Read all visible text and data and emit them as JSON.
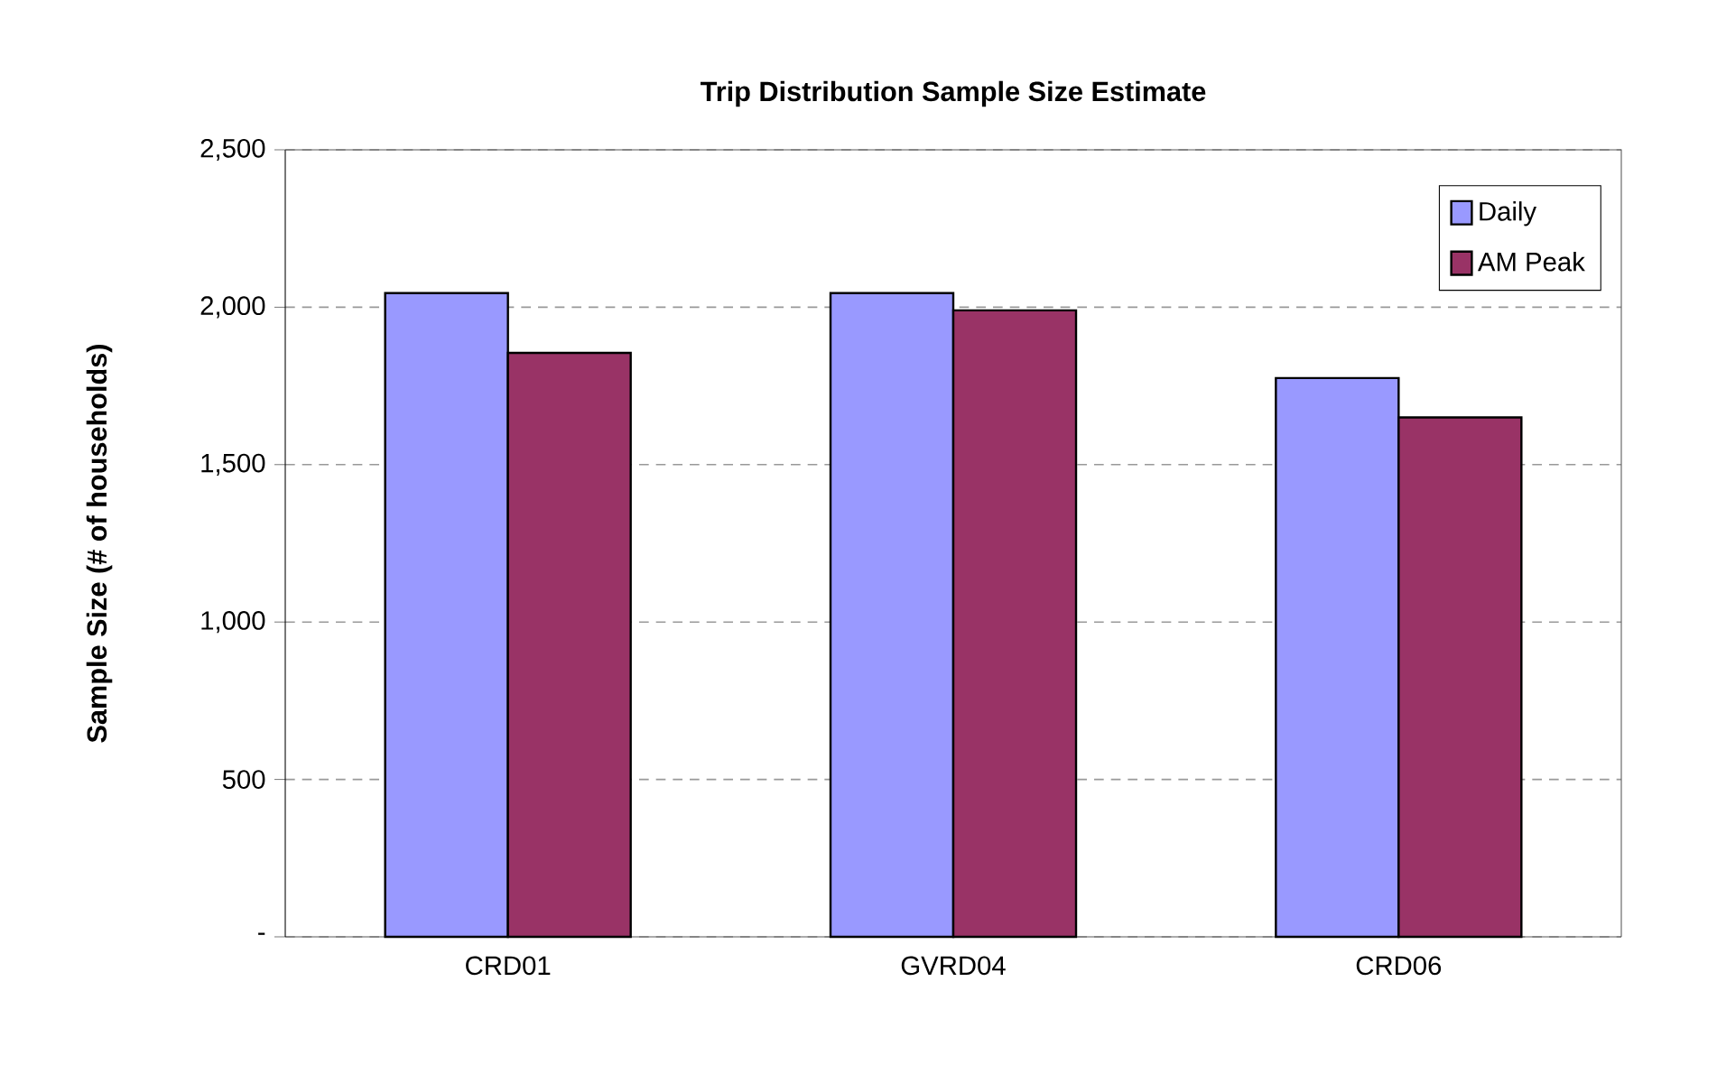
{
  "chart_data": {
    "type": "bar",
    "title": "Trip Distribution Sample Size Estimate",
    "ylabel": "Sample Size (# of households)",
    "categories": [
      "CRD01",
      "GVRD04",
      "CRD06"
    ],
    "series": [
      {
        "name": "Daily",
        "color": "#9999ff",
        "values": [
          2045,
          2045,
          1775
        ]
      },
      {
        "name": "AM Peak",
        "color": "#993366",
        "values": [
          1855,
          1990,
          1650
        ]
      }
    ],
    "ylim": [
      0,
      2500
    ],
    "yticks": [
      {
        "value": 0,
        "label": "-"
      },
      {
        "value": 500,
        "label": "500"
      },
      {
        "value": 1000,
        "label": "1,000"
      },
      {
        "value": 1500,
        "label": "1,500"
      },
      {
        "value": 2000,
        "label": "2,000"
      },
      {
        "value": 2500,
        "label": "2,500"
      }
    ],
    "grid": "y",
    "legend": "top right"
  }
}
